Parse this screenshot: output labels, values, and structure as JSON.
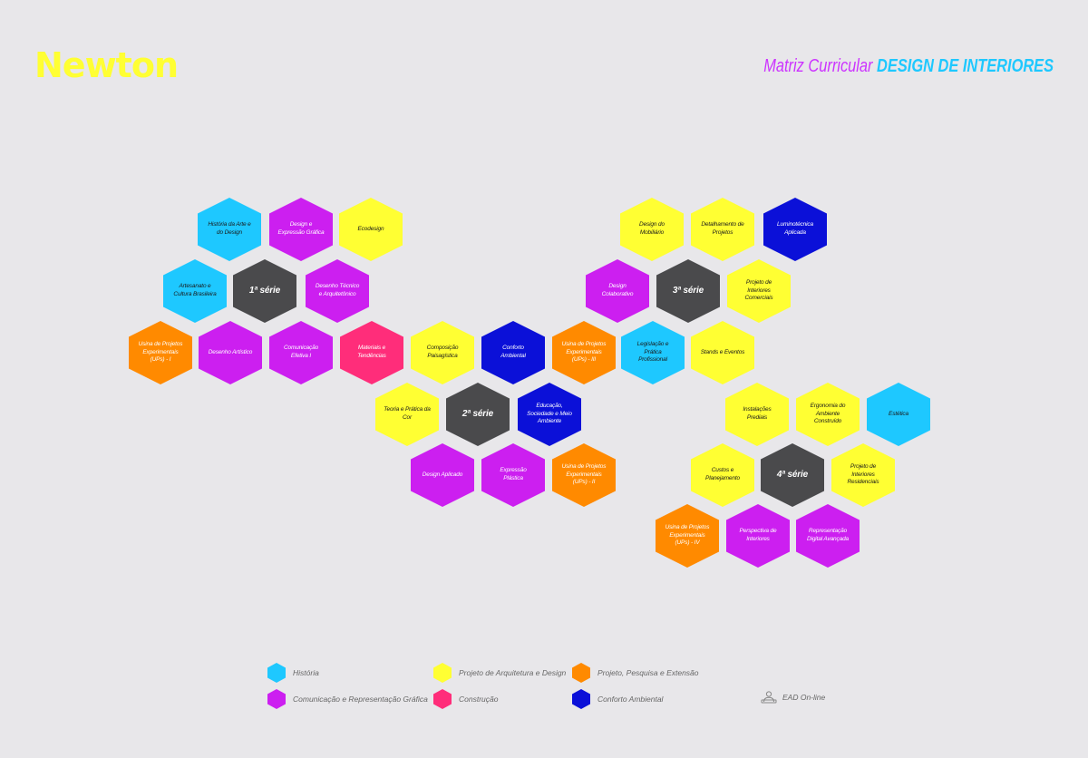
{
  "brand": {
    "logo": "Newton"
  },
  "header": {
    "title_prefix": "Matriz Curricular",
    "title_main": "DESIGN DE INTERIORES"
  },
  "colors": {
    "historia": "#1ec8ff",
    "comunicacao": "#cc1ff0",
    "arquitetura": "#ffff33",
    "construcao": "#ff2d7a",
    "pesquisa": "#ff8a00",
    "conforto": "#0b10d8",
    "serie": "#4a4a4c",
    "background": "#e8e7ea"
  },
  "hexagons": [
    {
      "label": "História da Arte e do Design",
      "cat": "historia"
    },
    {
      "label": "Design e Expressão Gráfica",
      "cat": "comunicacao"
    },
    {
      "label": "Ecodesign",
      "cat": "arquitetura"
    },
    {
      "label": "Artesanato e Cultura Brasileira",
      "cat": "historia"
    },
    {
      "label": "1ª série",
      "cat": "serie"
    },
    {
      "label": "Desenho Técnico e Arquitetônico",
      "cat": "comunicacao"
    },
    {
      "label": "Usina de Projetos Experimentais (UPs) - I",
      "cat": "pesquisa"
    },
    {
      "label": "Desenho Artístico",
      "cat": "comunicacao"
    },
    {
      "label": "Comunicação Efetiva I",
      "cat": "comunicacao"
    },
    {
      "label": "Materiais e Tendências",
      "cat": "construcao"
    },
    {
      "label": "Composição Paisagística",
      "cat": "arquitetura"
    },
    {
      "label": "Conforto Ambiental",
      "cat": "conforto"
    },
    {
      "label": "Usina de Projetos Experimentais (UPs) - III",
      "cat": "pesquisa"
    },
    {
      "label": "Legislação e Prática Profissional",
      "cat": "historia"
    },
    {
      "label": "Stands e Eventos",
      "cat": "arquitetura"
    },
    {
      "label": "Teoria e Prática da Cor",
      "cat": "arquitetura"
    },
    {
      "label": "2ª série",
      "cat": "serie"
    },
    {
      "label": "Educação, Sociedade e Meio Ambiente",
      "cat": "conforto"
    },
    {
      "label": "Design Aplicado",
      "cat": "comunicacao"
    },
    {
      "label": "Expressão Plástica",
      "cat": "comunicacao"
    },
    {
      "label": "Usina de Projetos Experimentais (UPs) - II",
      "cat": "pesquisa"
    },
    {
      "label": "Design do Mobiliário",
      "cat": "arquitetura"
    },
    {
      "label": "Detalhamento de Projetos",
      "cat": "arquitetura"
    },
    {
      "label": "Luminotécnica Aplicada",
      "cat": "conforto"
    },
    {
      "label": "Design Colaborativo",
      "cat": "comunicacao"
    },
    {
      "label": "3ª série",
      "cat": "serie"
    },
    {
      "label": "Projeto de Interiores Comerciais",
      "cat": "arquitetura"
    },
    {
      "label": "Instalações Prediais",
      "cat": "arquitetura"
    },
    {
      "label": "Ergonomia do Ambiente Construído",
      "cat": "arquitetura"
    },
    {
      "label": "Estética",
      "cat": "historia"
    },
    {
      "label": "Custos e Planejamento",
      "cat": "arquitetura"
    },
    {
      "label": "4ª série",
      "cat": "serie"
    },
    {
      "label": "Projeto de Interiores Residenciais",
      "cat": "arquitetura"
    },
    {
      "label": "Usina de Projetos Experimentais (UPs) - IV",
      "cat": "pesquisa"
    },
    {
      "label": "Perspectiva de Interiores",
      "cat": "comunicacao"
    },
    {
      "label": "Representação Digital Avançada",
      "cat": "comunicacao"
    }
  ],
  "legend": [
    {
      "label": "História",
      "cat": "historia"
    },
    {
      "label": "Projeto de Arquitetura e Design",
      "cat": "arquitetura"
    },
    {
      "label": "Projeto, Pesquisa e Extensão",
      "cat": "pesquisa"
    },
    {
      "label": "Comunicação e Representação Gráfica",
      "cat": "comunicacao"
    },
    {
      "label": "Construção",
      "cat": "construcao"
    },
    {
      "label": "Conforto Ambiental",
      "cat": "conforto"
    },
    {
      "label": "EAD On-line",
      "icon": "computer-user-icon"
    }
  ]
}
